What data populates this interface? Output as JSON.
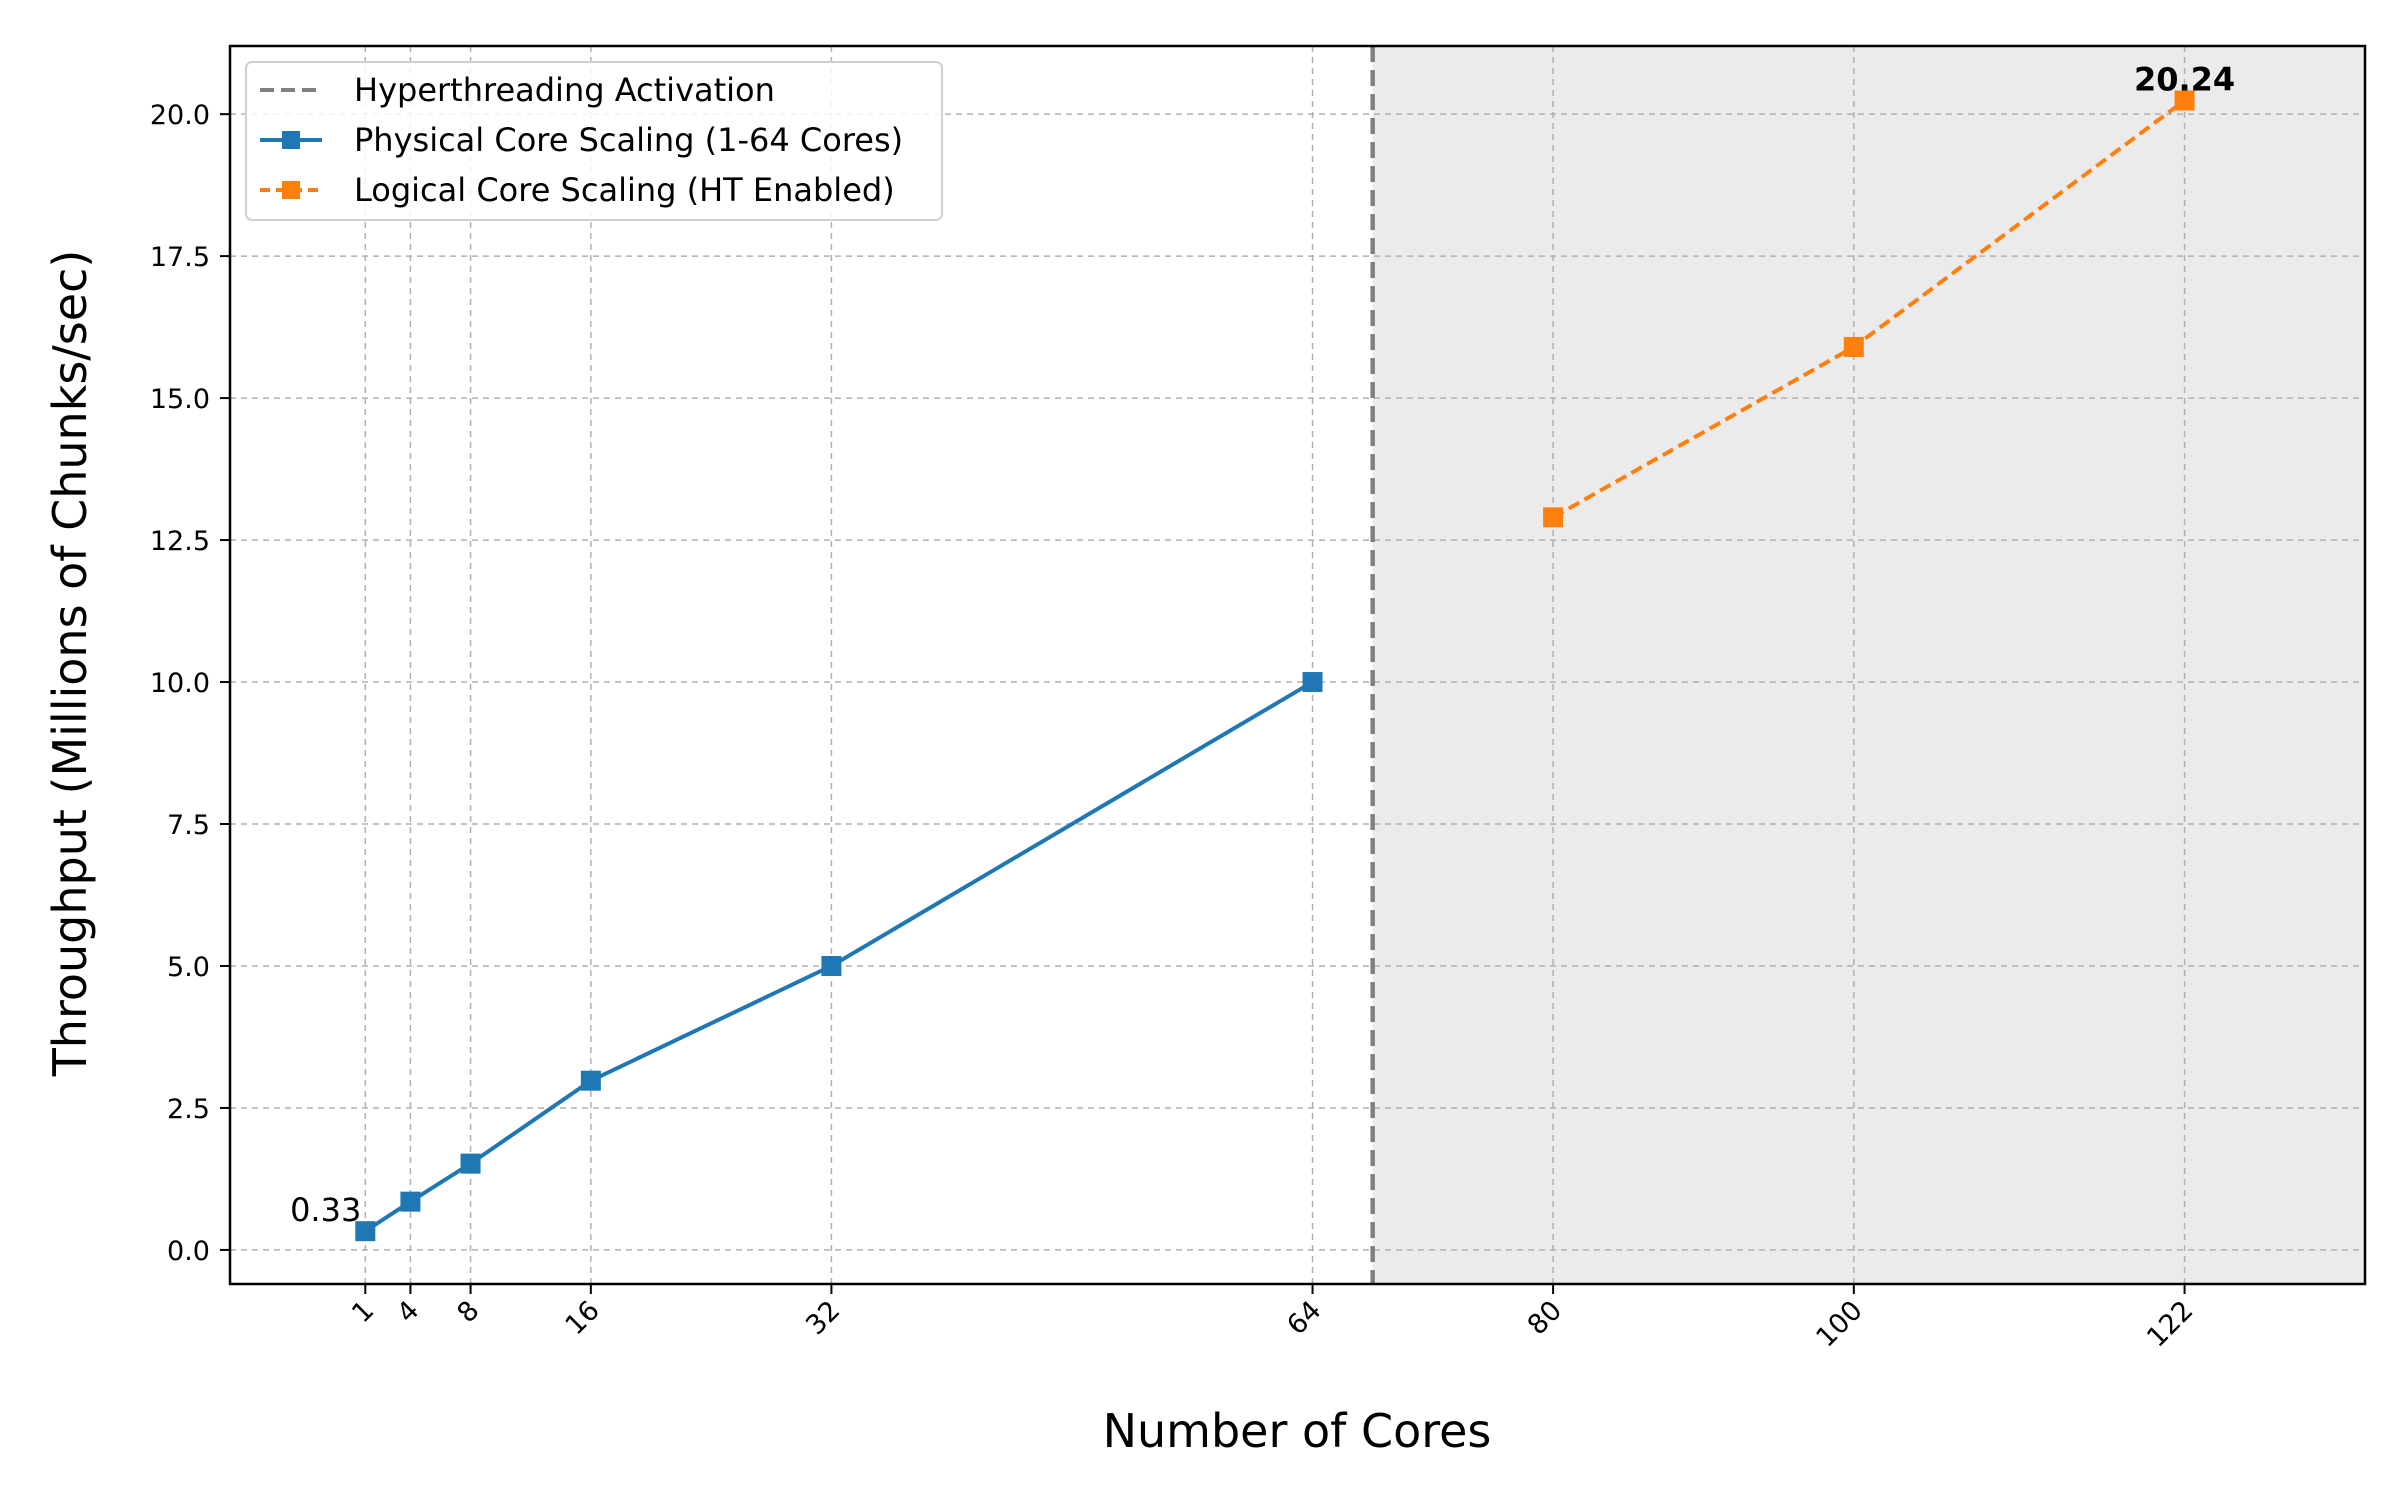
{
  "chart_data": {
    "type": "line",
    "title": "",
    "xlabel": "Number of Cores",
    "ylabel": "Throughput (Millions of Chunks/sec)",
    "xlim": [
      -8,
      134
    ],
    "ylim": [
      -0.6,
      21.2
    ],
    "x_ticks": [
      1,
      4,
      8,
      16,
      32,
      64,
      80,
      100,
      122
    ],
    "x_tick_labels": [
      "1",
      "4",
      "8",
      "16",
      "32",
      "64",
      "80",
      "100",
      "122"
    ],
    "y_ticks": [
      0.0,
      2.5,
      5.0,
      7.5,
      10.0,
      12.5,
      15.0,
      17.5,
      20.0
    ],
    "y_tick_labels": [
      "0.0",
      "2.5",
      "5.0",
      "7.5",
      "10.0",
      "12.5",
      "15.0",
      "17.5",
      "20.0"
    ],
    "grid": true,
    "legend_position": "top-left",
    "hyperthreading_line_x": 68,
    "shaded_region_x": [
      68,
      134
    ],
    "shaded_color": "#ebebeb",
    "series": [
      {
        "name": "Physical Core Scaling (1-64 Cores)",
        "color": "#1f77b4",
        "line_style": "solid",
        "marker": "square",
        "x": [
          1,
          4,
          8,
          16,
          32,
          64
        ],
        "y": [
          0.33,
          0.85,
          1.52,
          2.98,
          5.0,
          10.0
        ]
      },
      {
        "name": "Logical Core Scaling (HT Enabled)",
        "color": "#ff7f0e",
        "line_style": "dashed",
        "marker": "square",
        "x": [
          80,
          100,
          122
        ],
        "y": [
          12.9,
          15.9,
          20.24
        ]
      }
    ],
    "reference_lines": [
      {
        "name": "Hyperthreading Activation",
        "color": "#808080",
        "line_style": "dashed",
        "x": 68
      }
    ],
    "annotations": [
      {
        "text": "0.33",
        "x": 1,
        "y": 0.33,
        "weight": "normal"
      },
      {
        "text": "20.24",
        "x": 122,
        "y": 20.24,
        "weight": "bold"
      }
    ]
  }
}
